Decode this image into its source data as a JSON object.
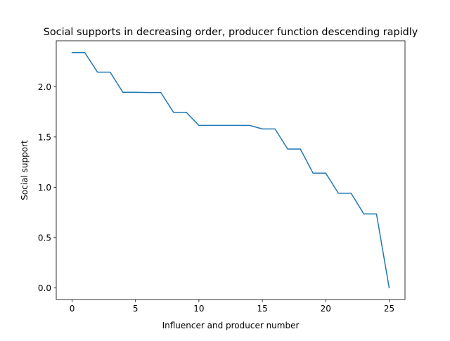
{
  "chart_data": {
    "type": "line",
    "title": "Social supports in decreasing order, producer function descending rapidly",
    "xlabel": "Influencer and producer number",
    "ylabel": "Social support",
    "xlim": [
      -1.25,
      26.25
    ],
    "ylim": [
      -0.117,
      2.457
    ],
    "xticks": [
      0,
      5,
      10,
      15,
      20,
      25
    ],
    "xtick_labels": [
      "0",
      "5",
      "10",
      "15",
      "20",
      "25"
    ],
    "yticks": [
      0.0,
      0.5,
      1.0,
      1.5,
      2.0
    ],
    "ytick_labels": [
      "0.0",
      "0.5",
      "1.0",
      "1.5",
      "2.0"
    ],
    "grid": false,
    "series": [
      {
        "color": "#1f77b4",
        "x": [
          0,
          1,
          2,
          3,
          4,
          5,
          6,
          7,
          8,
          9,
          10,
          11,
          12,
          13,
          14,
          15,
          16,
          17,
          18,
          19,
          20,
          21,
          22,
          23,
          24,
          25
        ],
        "y": [
          2.34,
          2.34,
          2.145,
          2.145,
          1.945,
          1.945,
          1.942,
          1.942,
          1.745,
          1.745,
          1.615,
          1.615,
          1.615,
          1.615,
          1.615,
          1.58,
          1.58,
          1.38,
          1.38,
          1.14,
          1.14,
          0.94,
          0.94,
          0.735,
          0.735,
          0.0
        ]
      }
    ]
  }
}
